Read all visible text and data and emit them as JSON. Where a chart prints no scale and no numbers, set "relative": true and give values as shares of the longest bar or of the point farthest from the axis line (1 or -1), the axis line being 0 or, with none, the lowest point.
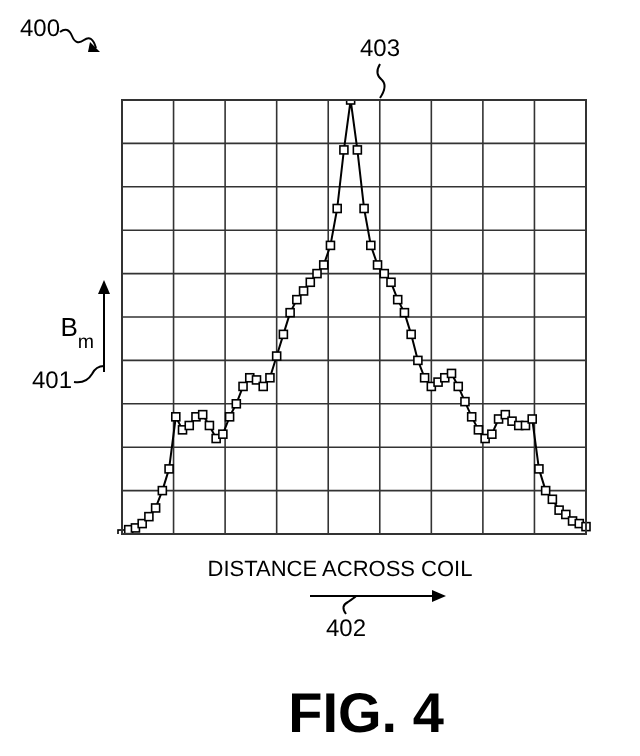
{
  "chart_data": {
    "type": "line",
    "relative": true,
    "xlabel": "DISTANCE ACROSS COIL",
    "ylabel": "B$_{m}$",
    "annotations": [
      "400",
      "401",
      "402",
      "403",
      "FIG. 4"
    ],
    "grid": true,
    "marker": "square",
    "tick_labels": false,
    "color": "#000000",
    "categories": [
      null,
      null,
      null,
      null,
      null,
      null,
      null,
      null,
      null,
      null,
      null,
      null,
      null,
      null,
      null,
      null,
      null,
      null,
      null,
      null,
      null,
      null,
      null,
      null,
      null,
      null,
      null,
      null,
      null,
      null,
      null,
      null,
      null,
      null,
      null,
      null,
      null,
      null,
      null,
      null,
      null,
      null,
      null,
      null,
      null,
      null,
      null,
      null,
      null,
      null,
      null,
      null,
      null,
      null,
      null,
      null,
      null,
      null,
      null,
      null,
      null,
      null,
      null,
      null,
      null,
      null,
      null,
      null,
      null,
      null
    ],
    "values": [
      0,
      0.01,
      0.014,
      0.024,
      0.04,
      0.06,
      0.1,
      0.15,
      0.27,
      0.24,
      0.25,
      0.27,
      0.275,
      0.25,
      0.22,
      0.23,
      0.27,
      0.3,
      0.34,
      0.36,
      0.355,
      0.34,
      0.36,
      0.41,
      0.46,
      0.51,
      0.54,
      0.56,
      0.58,
      0.6,
      0.62,
      0.665,
      0.75,
      0.885,
      1,
      0.885,
      0.75,
      0.665,
      0.62,
      0.6,
      0.58,
      0.54,
      0.51,
      0.46,
      0.4,
      0.36,
      0.34,
      0.35,
      0.36,
      0.37,
      0.34,
      0.305,
      0.27,
      0.24,
      0.22,
      0.23,
      0.265,
      0.275,
      0.26,
      0.25,
      0.25,
      0.265,
      0.15,
      0.1,
      0.08,
      0.055,
      0.045,
      0.03,
      0.024,
      0.017
    ]
  }
}
